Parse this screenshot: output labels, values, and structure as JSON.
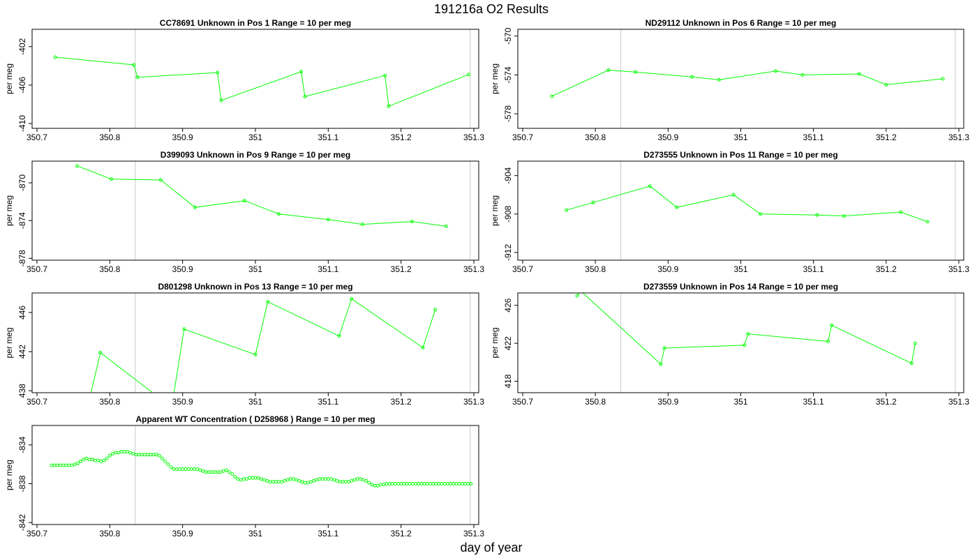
{
  "figure": {
    "title": "191216a  O2 Results",
    "xlabel": "day of year"
  },
  "chart_data": [
    {
      "type": "line",
      "title": "CC78691    Unknown in Pos 1          Range = 10 per meg",
      "ylabel": "per meg",
      "xlim": [
        350.7,
        351.3
      ],
      "ylim": [
        -410.5,
        -400.2
      ],
      "xticks": [
        350.7,
        350.8,
        350.9,
        351.0,
        351.1,
        351.2,
        351.3
      ],
      "yticks": [
        -402,
        -406,
        -410
      ],
      "vlines": [
        350.835,
        351.295
      ],
      "series": [
        {
          "color": "#00ff00",
          "connect": true,
          "x": [
            350.725,
            350.833,
            350.838,
            350.948,
            350.953,
            351.063,
            351.068,
            351.178,
            351.183,
            351.293
          ],
          "y": [
            -403.1,
            -403.9,
            -405.2,
            -404.7,
            -407.6,
            -404.6,
            -407.2,
            -405.0,
            -408.2,
            -404.9
          ]
        }
      ]
    },
    {
      "type": "line",
      "title": "ND29112    Unknown in Pos 6          Range = 10 per meg",
      "ylabel": "per meg",
      "xlim": [
        350.7,
        351.3
      ],
      "ylim": [
        -579.5,
        -569.3
      ],
      "xticks": [
        350.7,
        350.8,
        350.9,
        351.0,
        351.1,
        351.2,
        351.3
      ],
      "yticks": [
        -570,
        -574,
        -578
      ],
      "vlines": [
        350.835,
        351.295
      ],
      "series": [
        {
          "color": "#00ff00",
          "connect": true,
          "x": [
            350.74,
            350.818,
            350.855,
            350.933,
            350.97,
            351.048,
            351.085,
            351.163,
            351.2,
            351.278
          ],
          "y": [
            -576.2,
            -573.5,
            -573.7,
            -574.2,
            -574.5,
            -573.6,
            -574.0,
            -573.9,
            -575.0,
            -574.4
          ]
        }
      ]
    },
    {
      "type": "line",
      "title": "D399093    Unknown in Pos 9          Range = 10 per meg",
      "ylabel": "per meg",
      "xlim": [
        350.7,
        351.3
      ],
      "ylim": [
        -878.2,
        -867.7
      ],
      "xticks": [
        350.7,
        350.8,
        350.9,
        351.0,
        351.1,
        351.2,
        351.3
      ],
      "yticks": [
        -870,
        -874,
        -878
      ],
      "vlines": [
        350.835,
        351.295
      ],
      "series": [
        {
          "color": "#00ff00",
          "connect": true,
          "x": [
            350.755,
            350.802,
            350.87,
            350.917,
            350.985,
            351.032,
            351.1,
            351.147,
            351.215,
            351.262
          ],
          "y": [
            -868.2,
            -869.6,
            -869.7,
            -872.6,
            -871.9,
            -873.3,
            -873.9,
            -874.4,
            -874.1,
            -874.6
          ]
        }
      ]
    },
    {
      "type": "line",
      "title": "D273555    Unknown in Pos 11          Range = 10 per meg",
      "ylabel": "per meg",
      "xlim": [
        350.7,
        351.3
      ],
      "ylim": [
        -912.8,
        -902.5
      ],
      "xticks": [
        350.7,
        350.8,
        350.9,
        351.0,
        351.1,
        351.2,
        351.3
      ],
      "yticks": [
        -904,
        -908,
        -912
      ],
      "vlines": [
        350.835,
        351.295
      ],
      "series": [
        {
          "color": "#00ff00",
          "connect": true,
          "x": [
            350.76,
            350.797,
            350.875,
            350.912,
            350.99,
            351.027,
            351.105,
            351.142,
            351.22,
            351.257
          ],
          "y": [
            -907.6,
            -906.8,
            -905.1,
            -907.3,
            -906.0,
            -908.0,
            -908.1,
            -908.2,
            -907.8,
            -908.8
          ]
        }
      ]
    },
    {
      "type": "line",
      "title": "D801298    Unknown in Pos 13          Range = 10 per meg",
      "ylabel": "per meg",
      "xlim": [
        350.7,
        351.3
      ],
      "ylim": [
        437.8,
        448.0
      ],
      "xticks": [
        350.7,
        350.8,
        350.9,
        351.0,
        351.1,
        351.2,
        351.3
      ],
      "yticks": [
        438,
        442,
        446
      ],
      "vlines": [
        350.835,
        351.295
      ],
      "series": [
        {
          "color": "#00ff00",
          "connect": true,
          "x": [
            350.77,
            350.787,
            350.885,
            350.902,
            351.0,
            351.017,
            351.115,
            351.132,
            351.23,
            351.247
          ],
          "y": [
            436.4,
            441.9,
            436.3,
            444.3,
            441.7,
            447.1,
            443.6,
            447.4,
            442.4,
            446.3
          ]
        }
      ]
    },
    {
      "type": "line",
      "title": "D273559    Unknown in Pos 14          Range = 10 per meg",
      "ylabel": "per meg",
      "xlim": [
        350.7,
        351.3
      ],
      "ylim": [
        416.8,
        427.3
      ],
      "xticks": [
        350.7,
        350.8,
        350.9,
        351.0,
        351.1,
        351.2,
        351.3
      ],
      "yticks": [
        418,
        422,
        426
      ],
      "vlines": [
        350.835,
        351.295
      ],
      "series": [
        {
          "color": "#00ff00",
          "connect": true,
          "x": [
            350.775,
            350.78,
            350.89,
            350.895,
            351.005,
            351.01,
            351.12,
            351.125,
            351.235,
            351.24
          ],
          "y": [
            427.0,
            427.5,
            419.8,
            421.5,
            421.8,
            423.0,
            422.2,
            423.9,
            419.9,
            422.0
          ]
        }
      ]
    },
    {
      "type": "scatter",
      "title": "Apparent WT Concentration ( D258968 )          Range = 10 per meg",
      "ylabel": "per meg",
      "xlim": [
        350.7,
        351.3
      ],
      "ylim": [
        -842.2,
        -832.0
      ],
      "xticks": [
        350.7,
        350.8,
        350.9,
        351.0,
        351.1,
        351.2,
        351.3
      ],
      "yticks": [
        -834,
        -838,
        -842
      ],
      "vlines": [
        350.835,
        351.295
      ],
      "series": [
        {
          "color": "#00ff00",
          "connect": false,
          "x0": 350.72,
          "dx": 0.004,
          "y": [
            -836.1,
            -836.1,
            -836.1,
            -836.1,
            -836.1,
            -836.1,
            -836.1,
            -836.1,
            -836.0,
            -835.9,
            -835.7,
            -835.5,
            -835.4,
            -835.5,
            -835.5,
            -835.6,
            -835.6,
            -835.7,
            -835.6,
            -835.4,
            -835.1,
            -834.9,
            -834.8,
            -834.8,
            -834.7,
            -834.7,
            -834.7,
            -834.8,
            -834.9,
            -835.0,
            -835.0,
            -835.0,
            -835.0,
            -835.0,
            -835.0,
            -835.0,
            -835.0,
            -835.1,
            -835.4,
            -835.7,
            -836.0,
            -836.3,
            -836.5,
            -836.5,
            -836.5,
            -836.5,
            -836.5,
            -836.5,
            -836.5,
            -836.5,
            -836.5,
            -836.6,
            -836.7,
            -836.8,
            -836.8,
            -836.8,
            -836.8,
            -836.8,
            -836.8,
            -836.7,
            -836.6,
            -836.8,
            -837.0,
            -837.3,
            -837.5,
            -837.6,
            -837.5,
            -837.5,
            -837.4,
            -837.4,
            -837.4,
            -837.4,
            -837.5,
            -837.6,
            -837.7,
            -837.8,
            -837.8,
            -837.8,
            -837.8,
            -837.8,
            -837.7,
            -837.6,
            -837.5,
            -837.5,
            -837.6,
            -837.7,
            -837.8,
            -837.9,
            -837.9,
            -837.8,
            -837.7,
            -837.6,
            -837.5,
            -837.5,
            -837.5,
            -837.5,
            -837.5,
            -837.6,
            -837.7,
            -837.8,
            -837.8,
            -837.8,
            -837.8,
            -837.7,
            -837.6,
            -837.5,
            -837.5,
            -837.6,
            -837.7,
            -837.9,
            -838.1,
            -838.2,
            -838.2,
            -838.1,
            -838.1,
            -838.0,
            -838.0,
            -838.0,
            -838.0,
            -838.0,
            -838.0,
            -838.0,
            -838.0,
            -838.0,
            -838.0,
            -838.0,
            -838.0,
            -838.0,
            -838.0,
            -838.0,
            -838.0,
            -838.0,
            -838.0,
            -838.0,
            -838.0,
            -838.0,
            -838.0,
            -838.0,
            -838.0,
            -838.0,
            -838.0,
            -838.0,
            -838.0,
            -838.0,
            -838.0
          ]
        }
      ]
    }
  ]
}
